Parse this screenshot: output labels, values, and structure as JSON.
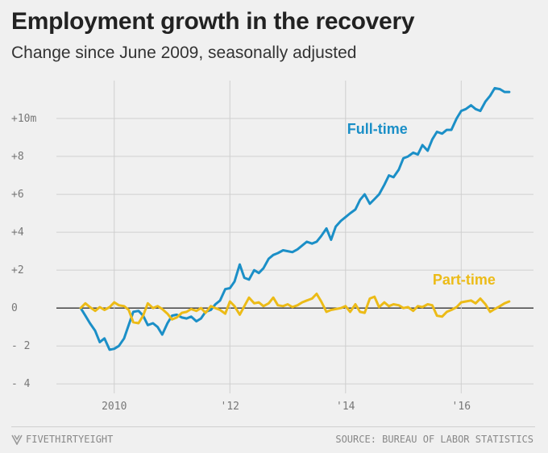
{
  "header": {
    "title": "Employment growth in the recovery",
    "subtitle": "Change since June 2009, seasonally adjusted"
  },
  "footer": {
    "brand": "FIVETHIRTYEIGHT",
    "source": "SOURCE: BUREAU OF LABOR STATISTICS"
  },
  "colors": {
    "full_time": "#1b8fc7",
    "part_time": "#ecbb17",
    "grid": "#cfcfcf",
    "zero_line": "#333333"
  },
  "chart_data": {
    "type": "line",
    "title": "Employment growth in the recovery",
    "subtitle": "Change since June 2009, seasonally adjusted",
    "xlabel": "",
    "ylabel": "",
    "unit": "millions of jobs",
    "xlim": [
      2009.0,
      2017.25
    ],
    "ylim": [
      -4.5,
      12
    ],
    "yticks": [
      {
        "value": 10,
        "label": "+10m"
      },
      {
        "value": 8,
        "label": "+8"
      },
      {
        "value": 6,
        "label": "+6"
      },
      {
        "value": 4,
        "label": "+4"
      },
      {
        "value": 2,
        "label": "+2"
      },
      {
        "value": 0,
        "label": "0"
      },
      {
        "value": -2,
        "label": "- 2"
      },
      {
        "value": -4,
        "label": "- 4"
      }
    ],
    "xticks": [
      {
        "value": 2010,
        "label": "2010"
      },
      {
        "value": 2012,
        "label": "'12"
      },
      {
        "value": 2014,
        "label": "'14"
      },
      {
        "value": 2016,
        "label": "'16"
      }
    ],
    "grid": true,
    "series": [
      {
        "name": "Full-time",
        "label_anchor": {
          "x": 2014.55,
          "y": 9.2
        },
        "x": [
          2009.42,
          2009.5,
          2009.58,
          2009.67,
          2009.75,
          2009.83,
          2009.92,
          2010.0,
          2010.08,
          2010.17,
          2010.25,
          2010.33,
          2010.42,
          2010.5,
          2010.58,
          2010.67,
          2010.75,
          2010.83,
          2010.92,
          2011.0,
          2011.08,
          2011.17,
          2011.25,
          2011.33,
          2011.42,
          2011.5,
          2011.58,
          2011.67,
          2011.75,
          2011.83,
          2011.92,
          2012.0,
          2012.08,
          2012.17,
          2012.25,
          2012.33,
          2012.42,
          2012.5,
          2012.58,
          2012.67,
          2012.75,
          2012.83,
          2012.92,
          2013.0,
          2013.08,
          2013.17,
          2013.25,
          2013.33,
          2013.42,
          2013.5,
          2013.58,
          2013.67,
          2013.75,
          2013.83,
          2013.92,
          2014.0,
          2014.08,
          2014.17,
          2014.25,
          2014.33,
          2014.42,
          2014.5,
          2014.58,
          2014.67,
          2014.75,
          2014.83,
          2014.92,
          2015.0,
          2015.08,
          2015.17,
          2015.25,
          2015.33,
          2015.42,
          2015.5,
          2015.58,
          2015.67,
          2015.75,
          2015.83,
          2015.92,
          2016.0,
          2016.08,
          2016.17,
          2016.25,
          2016.33,
          2016.42,
          2016.5,
          2016.58,
          2016.67,
          2016.75,
          2016.83
        ],
        "values": [
          0,
          -0.4,
          -0.8,
          -1.2,
          -1.8,
          -1.6,
          -2.2,
          -2.15,
          -2.0,
          -1.6,
          -0.9,
          -0.2,
          -0.15,
          -0.4,
          -0.9,
          -0.8,
          -1.0,
          -1.4,
          -0.8,
          -0.4,
          -0.35,
          -0.5,
          -0.55,
          -0.45,
          -0.7,
          -0.55,
          -0.2,
          -0.1,
          0.2,
          0.4,
          1.0,
          1.05,
          1.4,
          2.3,
          1.6,
          1.5,
          2.0,
          1.85,
          2.1,
          2.6,
          2.8,
          2.9,
          3.05,
          3.0,
          2.95,
          3.1,
          3.3,
          3.5,
          3.4,
          3.5,
          3.8,
          4.2,
          3.6,
          4.3,
          4.6,
          4.8,
          5.0,
          5.2,
          5.7,
          6.0,
          5.5,
          5.75,
          6.0,
          6.5,
          7.0,
          6.9,
          7.3,
          7.9,
          8.0,
          8.2,
          8.1,
          8.6,
          8.3,
          8.9,
          9.3,
          9.2,
          9.4,
          9.4,
          10.0,
          10.4,
          10.5,
          10.7,
          10.5,
          10.4,
          10.9,
          11.2,
          11.6,
          11.55,
          11.4,
          11.4
        ]
      },
      {
        "name": "Part-time",
        "label_anchor": {
          "x": 2016.05,
          "y": 1.25
        },
        "x": [
          2009.42,
          2009.5,
          2009.58,
          2009.67,
          2009.75,
          2009.83,
          2009.92,
          2010.0,
          2010.08,
          2010.17,
          2010.25,
          2010.33,
          2010.42,
          2010.5,
          2010.58,
          2010.67,
          2010.75,
          2010.83,
          2010.92,
          2011.0,
          2011.08,
          2011.17,
          2011.25,
          2011.33,
          2011.42,
          2011.5,
          2011.58,
          2011.67,
          2011.75,
          2011.83,
          2011.92,
          2012.0,
          2012.08,
          2012.17,
          2012.25,
          2012.33,
          2012.42,
          2012.5,
          2012.58,
          2012.67,
          2012.75,
          2012.83,
          2012.92,
          2013.0,
          2013.08,
          2013.17,
          2013.25,
          2013.33,
          2013.42,
          2013.5,
          2013.58,
          2013.67,
          2013.75,
          2013.83,
          2013.92,
          2014.0,
          2014.08,
          2014.17,
          2014.25,
          2014.33,
          2014.42,
          2014.5,
          2014.58,
          2014.67,
          2014.75,
          2014.83,
          2014.92,
          2015.0,
          2015.08,
          2015.17,
          2015.25,
          2015.33,
          2015.42,
          2015.5,
          2015.58,
          2015.67,
          2015.75,
          2015.83,
          2015.92,
          2016.0,
          2016.08,
          2016.17,
          2016.25,
          2016.33,
          2016.42,
          2016.5,
          2016.58,
          2016.67,
          2016.75,
          2016.83
        ],
        "values": [
          0,
          0.25,
          0.05,
          -0.15,
          0.05,
          -0.1,
          0.05,
          0.3,
          0.15,
          0.1,
          -0.1,
          -0.75,
          -0.8,
          -0.4,
          0.25,
          0.0,
          0.1,
          -0.05,
          -0.3,
          -0.6,
          -0.5,
          -0.25,
          -0.2,
          -0.05,
          -0.15,
          0.0,
          -0.25,
          0.1,
          0.0,
          -0.1,
          -0.3,
          0.35,
          0.1,
          -0.35,
          0.1,
          0.55,
          0.25,
          0.3,
          0.1,
          0.25,
          0.55,
          0.15,
          0.1,
          0.2,
          0.05,
          0.15,
          0.3,
          0.4,
          0.5,
          0.75,
          0.35,
          -0.2,
          -0.1,
          -0.05,
          0.0,
          0.1,
          -0.2,
          0.2,
          -0.2,
          -0.25,
          0.5,
          0.6,
          0.05,
          0.3,
          0.1,
          0.2,
          0.15,
          0.0,
          0.05,
          -0.15,
          0.1,
          0.05,
          0.2,
          0.15,
          -0.4,
          -0.45,
          -0.2,
          -0.1,
          0.05,
          0.3,
          0.35,
          0.4,
          0.25,
          0.5,
          0.2,
          -0.2,
          -0.05,
          0.1,
          0.25,
          0.35
        ]
      }
    ]
  }
}
